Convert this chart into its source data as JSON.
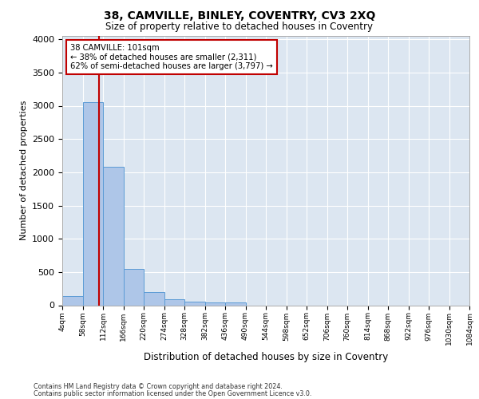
{
  "title": "38, CAMVILLE, BINLEY, COVENTRY, CV3 2XQ",
  "subtitle": "Size of property relative to detached houses in Coventry",
  "xlabel": "Distribution of detached houses by size in Coventry",
  "ylabel": "Number of detached properties",
  "footnote1": "Contains HM Land Registry data © Crown copyright and database right 2024.",
  "footnote2": "Contains public sector information licensed under the Open Government Licence v3.0.",
  "annotation_line1": "38 CAMVILLE: 101sqm",
  "annotation_line2": "← 38% of detached houses are smaller (2,311)",
  "annotation_line3": "62% of semi-detached houses are larger (3,797) →",
  "bar_color": "#aec6e8",
  "bar_edge_color": "#5b9bd5",
  "marker_color": "#c00000",
  "background_color": "#dce6f1",
  "bins": [
    4,
    58,
    112,
    166,
    220,
    274,
    328,
    382,
    436,
    490,
    544,
    598,
    652,
    706,
    760,
    814,
    868,
    922,
    976,
    1030,
    1084
  ],
  "bar_heights": [
    140,
    3050,
    2080,
    550,
    200,
    85,
    60,
    45,
    40,
    0,
    0,
    0,
    0,
    0,
    0,
    0,
    0,
    0,
    0,
    0
  ],
  "property_size": 101,
  "ylim": [
    0,
    4050
  ],
  "yticks": [
    0,
    500,
    1000,
    1500,
    2000,
    2500,
    3000,
    3500,
    4000
  ]
}
